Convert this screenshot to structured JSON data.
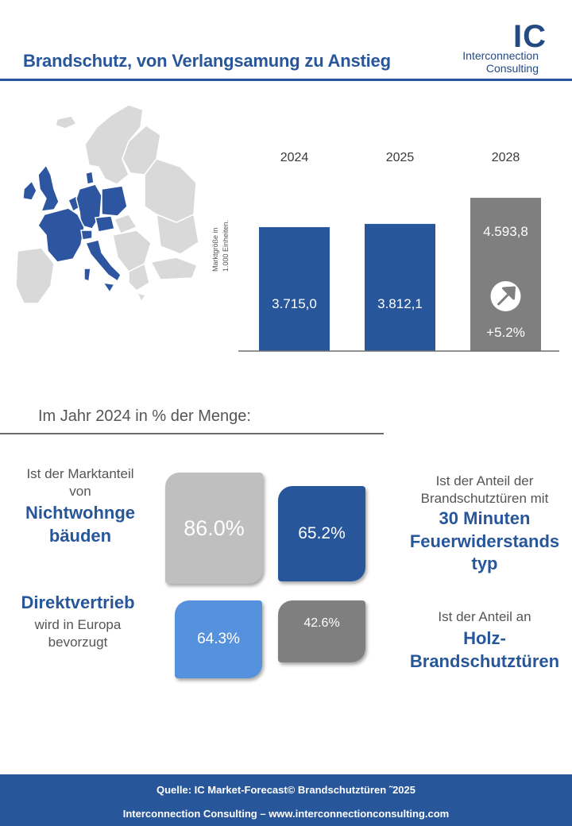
{
  "header": {
    "title": "Brandschutz, von Verlangsamung zu Anstieg",
    "logo_mark": "IC",
    "logo_line1": "Interconnection",
    "logo_line2": "Consulting"
  },
  "map": {
    "icon": "europe-map-icon",
    "highlight_color": "#2d55a0",
    "base_color": "#d9d9d9"
  },
  "chart_data": {
    "type": "bar",
    "categories": [
      "2024",
      "2025",
      "2028"
    ],
    "values": [
      3715.0,
      3812.1,
      4593.8
    ],
    "value_labels": [
      "3.715,0",
      "3.812,1",
      "4.593,8"
    ],
    "ylabel_line1": "Marktgröße in",
    "ylabel_line2": "1.000 Einheiten.",
    "growth_label": "+5.2%",
    "growth_icon": "arrow-up-right-icon",
    "colors": [
      "#27569b",
      "#27569b",
      "#7f7f7f"
    ],
    "ylim": [
      0,
      5000
    ]
  },
  "section": {
    "title": "Im Jahr 2024 in % der Menge:"
  },
  "blocks": {
    "left_top_gray": "Ist der Marktanteil von",
    "left_top_blue": "Nichtwohnge bäuden",
    "left_bottom_blue": "Direktvertrieb",
    "left_bottom_gray": "wird in Europa bevorzugt",
    "right_top_gray": "Ist der Anteil der Brandschutztüren mit",
    "right_top_blue_inline": "30 Minuten",
    "right_top_blue": "Feuerwiderstands typ",
    "right_bottom_gray": "Ist der Anteil an",
    "right_bottom_blue": "Holz- Brandschutztüren"
  },
  "tiles": [
    {
      "label": "86.0%",
      "color": "#bfbfbf"
    },
    {
      "label": "65.2%",
      "color": "#27569b"
    },
    {
      "label": "64.3%",
      "color": "#5591dc"
    },
    {
      "label": "42.6%",
      "color": "#7f7f7f"
    }
  ],
  "footer": {
    "line1": "Quelle: IC Market-Forecast© Brandschutztüren ˜2025",
    "line2": "Interconnection Consulting –  www.interconnectionconsulting.com"
  }
}
